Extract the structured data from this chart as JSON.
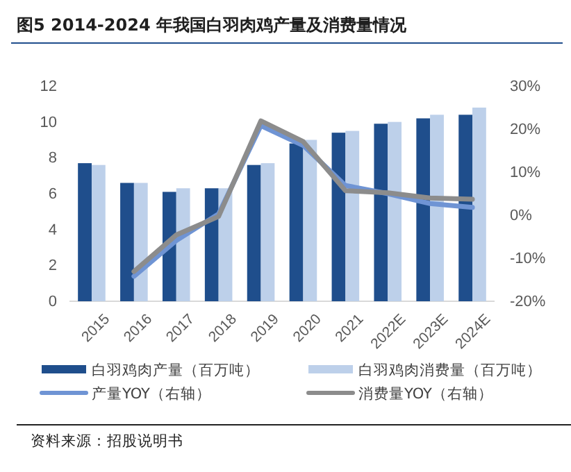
{
  "chart_data": {
    "type": "bar",
    "title": "图5   2014-2024 年我国白羽肉鸡产量及消费量情况",
    "categories": [
      "2015",
      "2016",
      "2017",
      "2018",
      "2019",
      "2020",
      "2021",
      "2022E",
      "2023E",
      "2024E"
    ],
    "series": [
      {
        "name": "白羽鸡肉产量（百万吨）",
        "color": "#1f4e8c",
        "values": [
          7.7,
          6.6,
          6.1,
          6.3,
          7.6,
          8.8,
          9.4,
          9.9,
          10.2,
          10.4
        ]
      },
      {
        "name": "白羽鸡肉消费量（百万吨）",
        "color": "#bdd0ea",
        "values": [
          7.6,
          6.6,
          6.3,
          6.3,
          7.7,
          9.0,
          9.5,
          10.0,
          10.4,
          10.8
        ]
      },
      {
        "name": "产量YOY（右轴）",
        "type": "line",
        "axis": "y2",
        "color": "#6f94d4",
        "values": [
          null,
          -14.2,
          -5.9,
          0.3,
          20.8,
          16.2,
          6.9,
          5.0,
          2.7,
          1.8
        ]
      },
      {
        "name": "消费量YOY（右轴）",
        "type": "line",
        "axis": "y2",
        "color": "#8c8c8c",
        "values": [
          null,
          -13.1,
          -4.6,
          -0.3,
          21.9,
          17.1,
          5.7,
          5.2,
          4.0,
          3.7
        ]
      }
    ],
    "ylim": [
      0,
      12
    ],
    "yticks": [
      0,
      2,
      4,
      6,
      8,
      10,
      12
    ],
    "y2lim": [
      -20,
      30
    ],
    "y2ticks": [
      {
        "value": -20,
        "label": "-20%"
      },
      {
        "value": -10,
        "label": "-10%"
      },
      {
        "value": 0,
        "label": "0%"
      },
      {
        "value": 10,
        "label": "10%"
      },
      {
        "value": 20,
        "label": "20%"
      },
      {
        "value": 30,
        "label": "30%"
      }
    ],
    "legend": "bottom",
    "grid": false,
    "annotations": [
      "资料来源：招股说明书"
    ]
  }
}
